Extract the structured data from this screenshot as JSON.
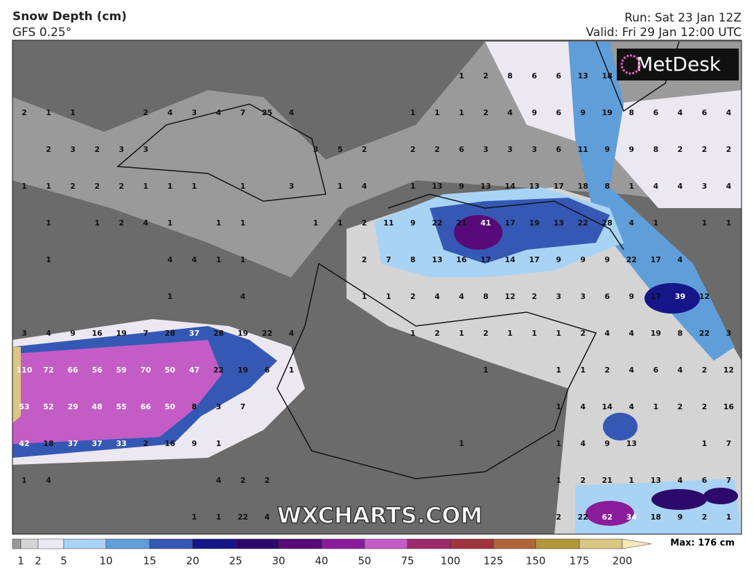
{
  "header": {
    "title": "Snow Depth (cm)",
    "model": "GFS 0.25°",
    "run": "Run: Sat 23 Jan 12Z",
    "valid": "Valid: Fri 29 Jan 12:00 UTC"
  },
  "logo": "MetDesk",
  "watermark": "WXCHARTS.COM",
  "grid_values": [
    [
      null,
      null,
      null,
      null,
      null,
      null,
      null,
      null,
      null,
      null,
      null,
      null,
      null,
      null,
      null,
      null,
      null,
      null,
      1,
      2,
      8,
      6,
      6,
      13,
      18,
      null,
      null,
      null,
      null,
      null
    ],
    [
      2,
      1,
      1,
      null,
      null,
      2,
      4,
      3,
      4,
      7,
      25,
      4,
      null,
      null,
      null,
      null,
      1,
      1,
      1,
      2,
      4,
      9,
      6,
      9,
      19,
      8,
      6,
      4,
      6,
      4
    ],
    [
      null,
      2,
      3,
      2,
      3,
      3,
      null,
      null,
      null,
      null,
      null,
      null,
      3,
      5,
      2,
      null,
      2,
      2,
      6,
      3,
      3,
      3,
      6,
      11,
      9,
      9,
      8,
      2,
      2,
      2
    ],
    [
      1,
      1,
      2,
      2,
      2,
      1,
      1,
      1,
      null,
      1,
      null,
      3,
      null,
      1,
      4,
      null,
      1,
      13,
      9,
      13,
      14,
      13,
      17,
      18,
      8,
      1,
      4,
      4,
      3,
      4
    ],
    [
      null,
      1,
      null,
      1,
      2,
      4,
      1,
      null,
      1,
      1,
      null,
      null,
      1,
      1,
      2,
      11,
      9,
      22,
      21,
      41,
      17,
      19,
      13,
      22,
      28,
      4,
      1,
      null,
      1,
      1
    ],
    [
      null,
      1,
      null,
      null,
      null,
      null,
      4,
      4,
      1,
      1,
      null,
      null,
      null,
      null,
      2,
      7,
      8,
      13,
      16,
      17,
      14,
      17,
      9,
      9,
      9,
      22,
      17,
      4,
      null,
      null
    ],
    [
      null,
      null,
      null,
      null,
      null,
      null,
      1,
      null,
      null,
      4,
      null,
      null,
      null,
      null,
      1,
      1,
      2,
      4,
      4,
      8,
      12,
      2,
      3,
      3,
      6,
      9,
      17,
      39,
      12,
      null
    ],
    [
      3,
      4,
      9,
      16,
      19,
      7,
      28,
      37,
      28,
      19,
      22,
      4,
      null,
      null,
      null,
      null,
      1,
      2,
      1,
      2,
      1,
      1,
      1,
      2,
      4,
      4,
      19,
      8,
      22,
      3
    ],
    [
      110,
      72,
      66,
      56,
      59,
      70,
      50,
      47,
      22,
      19,
      6,
      1,
      null,
      null,
      null,
      null,
      null,
      null,
      null,
      1,
      null,
      null,
      1,
      1,
      2,
      4,
      6,
      4,
      2,
      12
    ],
    [
      53,
      52,
      29,
      48,
      55,
      66,
      50,
      8,
      3,
      7,
      null,
      null,
      null,
      null,
      null,
      null,
      null,
      null,
      null,
      null,
      null,
      null,
      1,
      4,
      14,
      4,
      1,
      2,
      2,
      16
    ],
    [
      42,
      18,
      37,
      37,
      33,
      2,
      16,
      9,
      1,
      null,
      null,
      null,
      null,
      null,
      null,
      null,
      null,
      null,
      1,
      null,
      null,
      null,
      1,
      4,
      9,
      13,
      null,
      null,
      1,
      7
    ],
    [
      1,
      4,
      null,
      null,
      null,
      null,
      null,
      null,
      4,
      2,
      2,
      null,
      null,
      null,
      null,
      null,
      null,
      null,
      null,
      null,
      null,
      null,
      1,
      2,
      21,
      1,
      13,
      4,
      6,
      7
    ],
    [
      null,
      null,
      null,
      null,
      null,
      null,
      null,
      1,
      1,
      22,
      4,
      null,
      null,
      null,
      null,
      null,
      null,
      null,
      null,
      null,
      null,
      null,
      2,
      22,
      62,
      34,
      18,
      9,
      2,
      1
    ]
  ],
  "legend": {
    "values": [
      1,
      2,
      5,
      10,
      15,
      20,
      25,
      30,
      40,
      50,
      75,
      100,
      125,
      150,
      175,
      200
    ],
    "colors": [
      "#9a9a9a",
      "#d4d4d4",
      "#ece8f2",
      "#a9d3f5",
      "#5f9ed9",
      "#3658b5",
      "#16168a",
      "#2c0a6c",
      "#570a78",
      "#8a1c9c",
      "#c45cc6",
      "#9c2a6c",
      "#a0343e",
      "#b2643a",
      "#b4963a",
      "#dcc684",
      "#f6e8b8"
    ],
    "max": "Max: 176 cm"
  }
}
